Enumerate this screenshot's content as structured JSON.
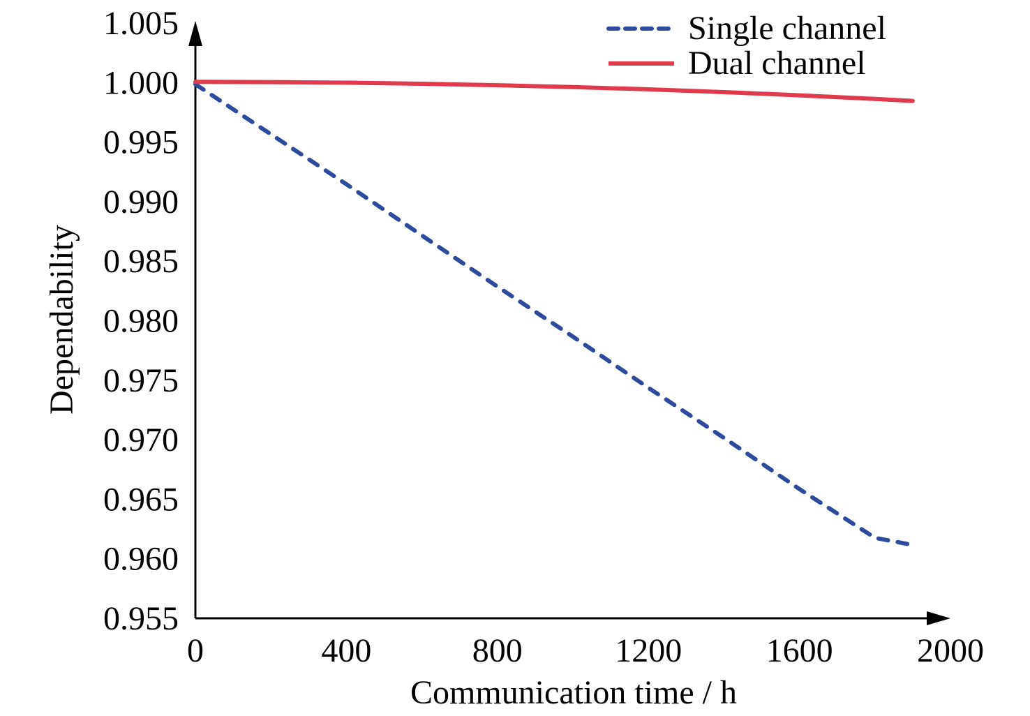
{
  "chart_data": {
    "type": "line",
    "title": "",
    "xlabel": "Communication time / h",
    "ylabel": "Dependability",
    "xlim": [
      0,
      2000
    ],
    "ylim": [
      0.955,
      1.005
    ],
    "xticks": [
      "0",
      "400",
      "800",
      "1200",
      "1600",
      "2000"
    ],
    "xtick_values": [
      0,
      400,
      800,
      1200,
      1600,
      2000
    ],
    "yticks": [
      "0.955",
      "0.960",
      "0.965",
      "0.970",
      "0.975",
      "0.980",
      "0.985",
      "0.990",
      "0.995",
      "1.000",
      "1.005"
    ],
    "ytick_values": [
      0.955,
      0.96,
      0.965,
      0.97,
      0.975,
      0.98,
      0.985,
      0.99,
      0.995,
      1.0,
      1.005
    ],
    "grid": false,
    "legend_position": "top-right",
    "series": [
      {
        "name": "Single channel",
        "style": "dashed",
        "color": "#2E4A9C",
        "x": [
          0,
          200,
          400,
          600,
          800,
          1000,
          1200,
          1400,
          1600,
          1800,
          1900
        ],
        "y": [
          0.9998,
          0.9956,
          0.9914,
          0.9871,
          0.9828,
          0.9786,
          0.9743,
          0.9701,
          0.9658,
          0.9617,
          0.9611
        ]
      },
      {
        "name": "Dual channel",
        "style": "solid",
        "color": "#E03A4E",
        "x": [
          0,
          200,
          400,
          600,
          800,
          1000,
          1200,
          1400,
          1600,
          1800,
          1900
        ],
        "y": [
          1.0,
          0.99998,
          0.99993,
          0.99984,
          0.99972,
          0.99956,
          0.99937,
          0.99914,
          0.99887,
          0.99857,
          0.9984
        ]
      }
    ]
  }
}
